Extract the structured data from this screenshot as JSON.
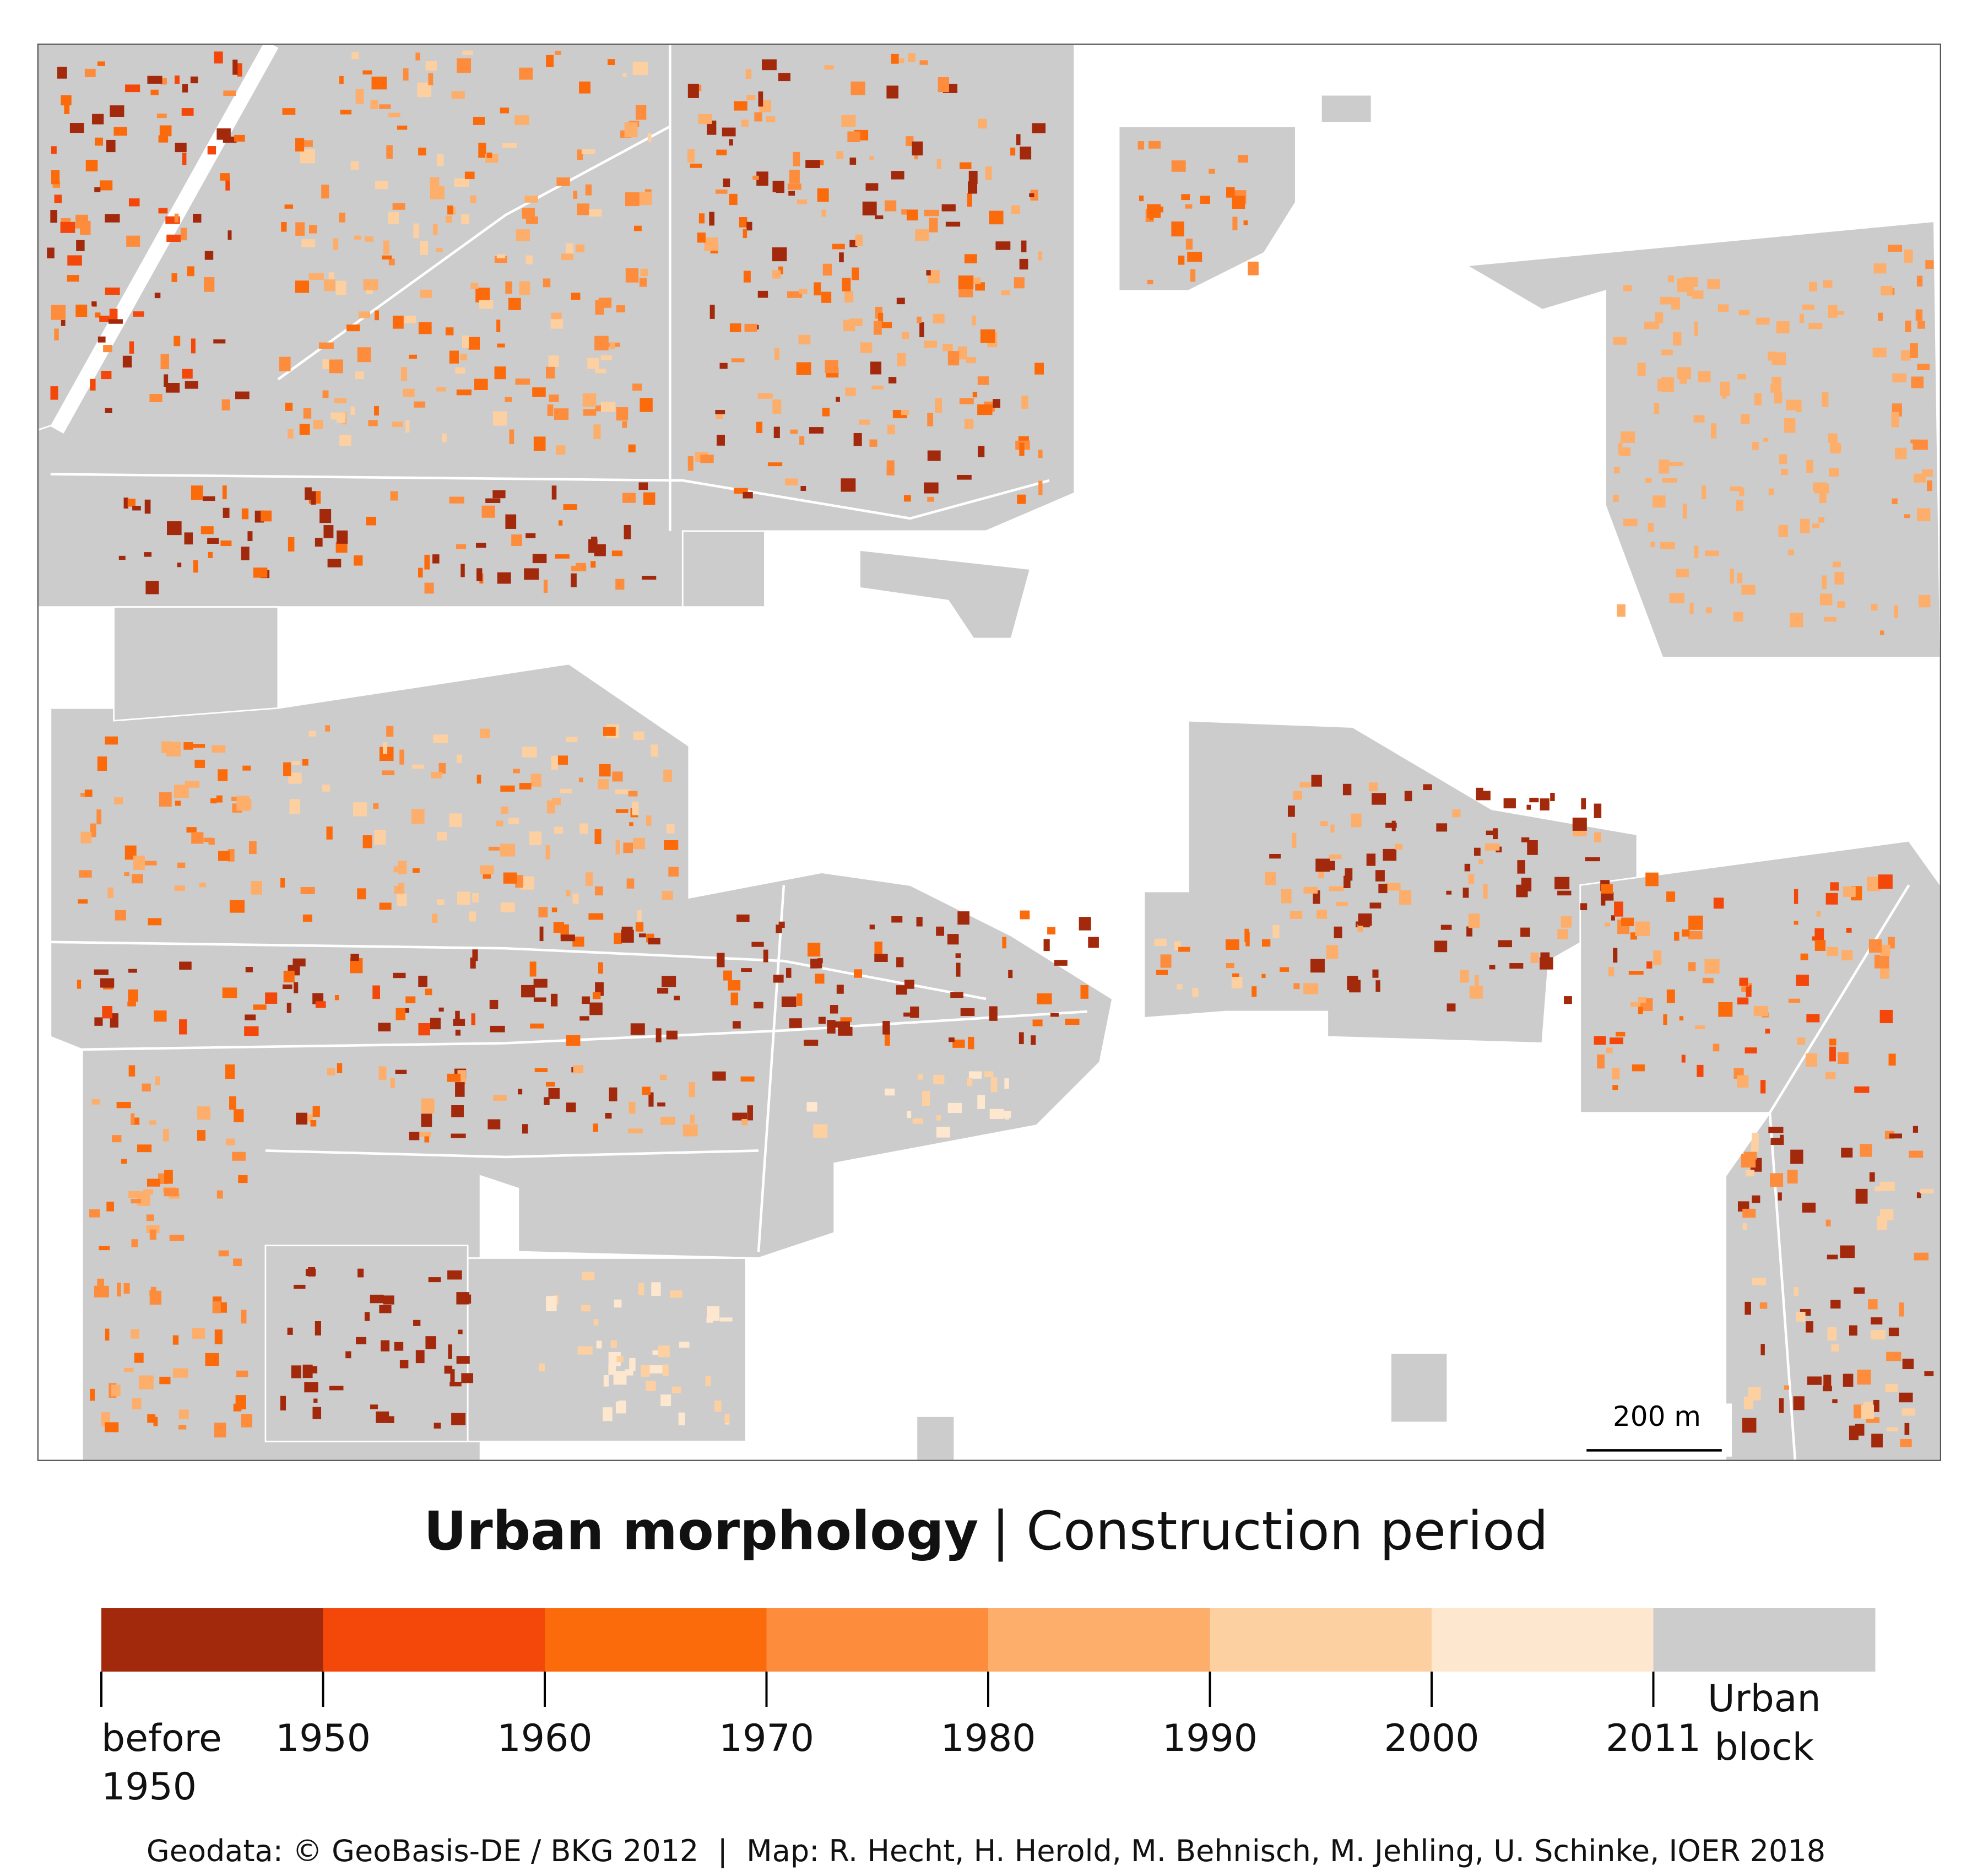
{
  "map": {
    "scale_label": "200 m"
  },
  "title": {
    "bold": "Urban morphology",
    "rest": "| Construction period"
  },
  "legend": {
    "labels": [
      "before 1950",
      "1950",
      "1960",
      "1970",
      "1980",
      "1990",
      "2000",
      "2011",
      "Urban block"
    ],
    "colors": [
      "#a3290c",
      "#f4480a",
      "#fc6b0b",
      "#fd8d3c",
      "#fdae6b",
      "#fdd0a2",
      "#fee7cf",
      "#cccccc"
    ]
  },
  "credits": "Geodata: © GeoBasis-DE / BKG 2012  |  Map: R. Hecht, H. Herold, M. Behnisch, M. Jehling, U. Schinke, IOER 2018"
}
